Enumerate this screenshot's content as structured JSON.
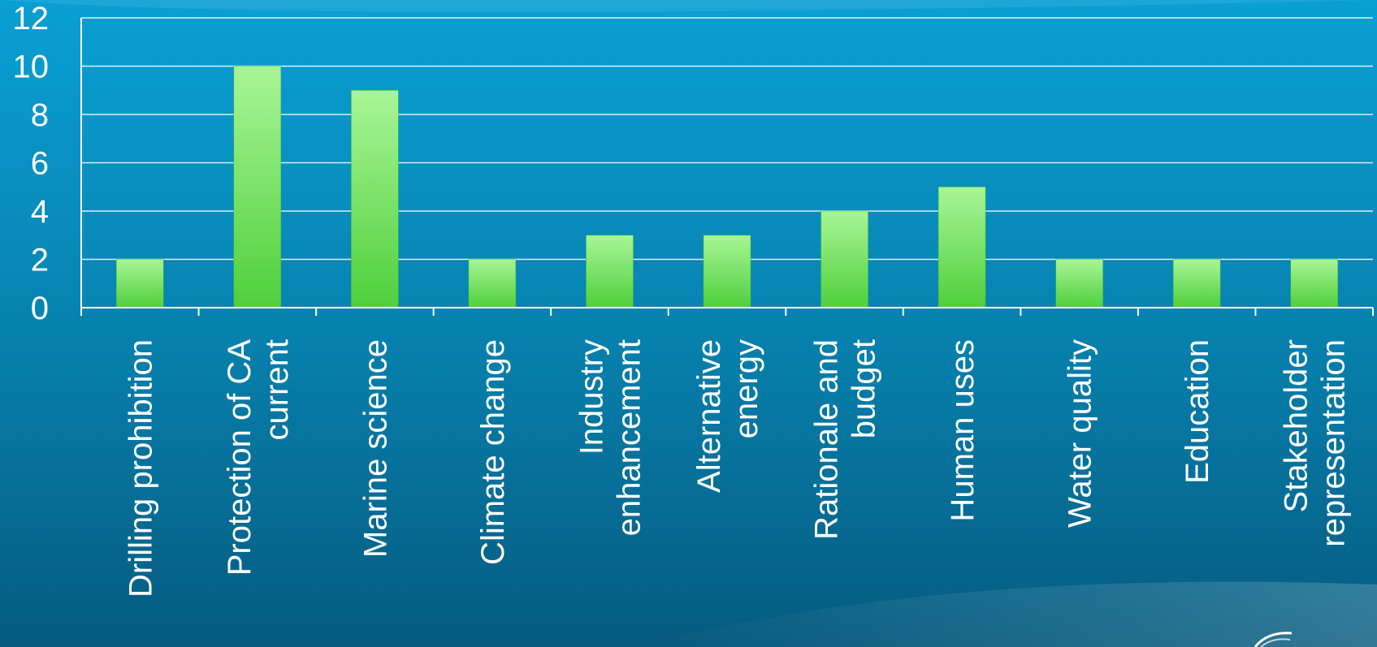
{
  "chart_data": {
    "type": "bar",
    "title": "",
    "xlabel": "",
    "ylabel": "",
    "ylim": [
      0,
      12
    ],
    "yticks": [
      0,
      2,
      4,
      6,
      8,
      10,
      12
    ],
    "grid": true,
    "legend": "none",
    "bar_color": "#5fd64a",
    "bar_highlight_color": "#a8f596",
    "background_color": "#0786b4",
    "categories": [
      [
        "Drilling prohibition"
      ],
      [
        "Protection of CA",
        "current"
      ],
      [
        "Marine science"
      ],
      [
        "Climate change"
      ],
      [
        "Industry",
        "enhancement"
      ],
      [
        "Alternative",
        "energy"
      ],
      [
        "Rationale and",
        "budget"
      ],
      [
        "Human uses"
      ],
      [
        "Water quality"
      ],
      [
        "Education"
      ],
      [
        "Stakeholder",
        "representation"
      ]
    ],
    "values": [
      2,
      10,
      9,
      2,
      3,
      3,
      4,
      5,
      2,
      2,
      2
    ]
  }
}
